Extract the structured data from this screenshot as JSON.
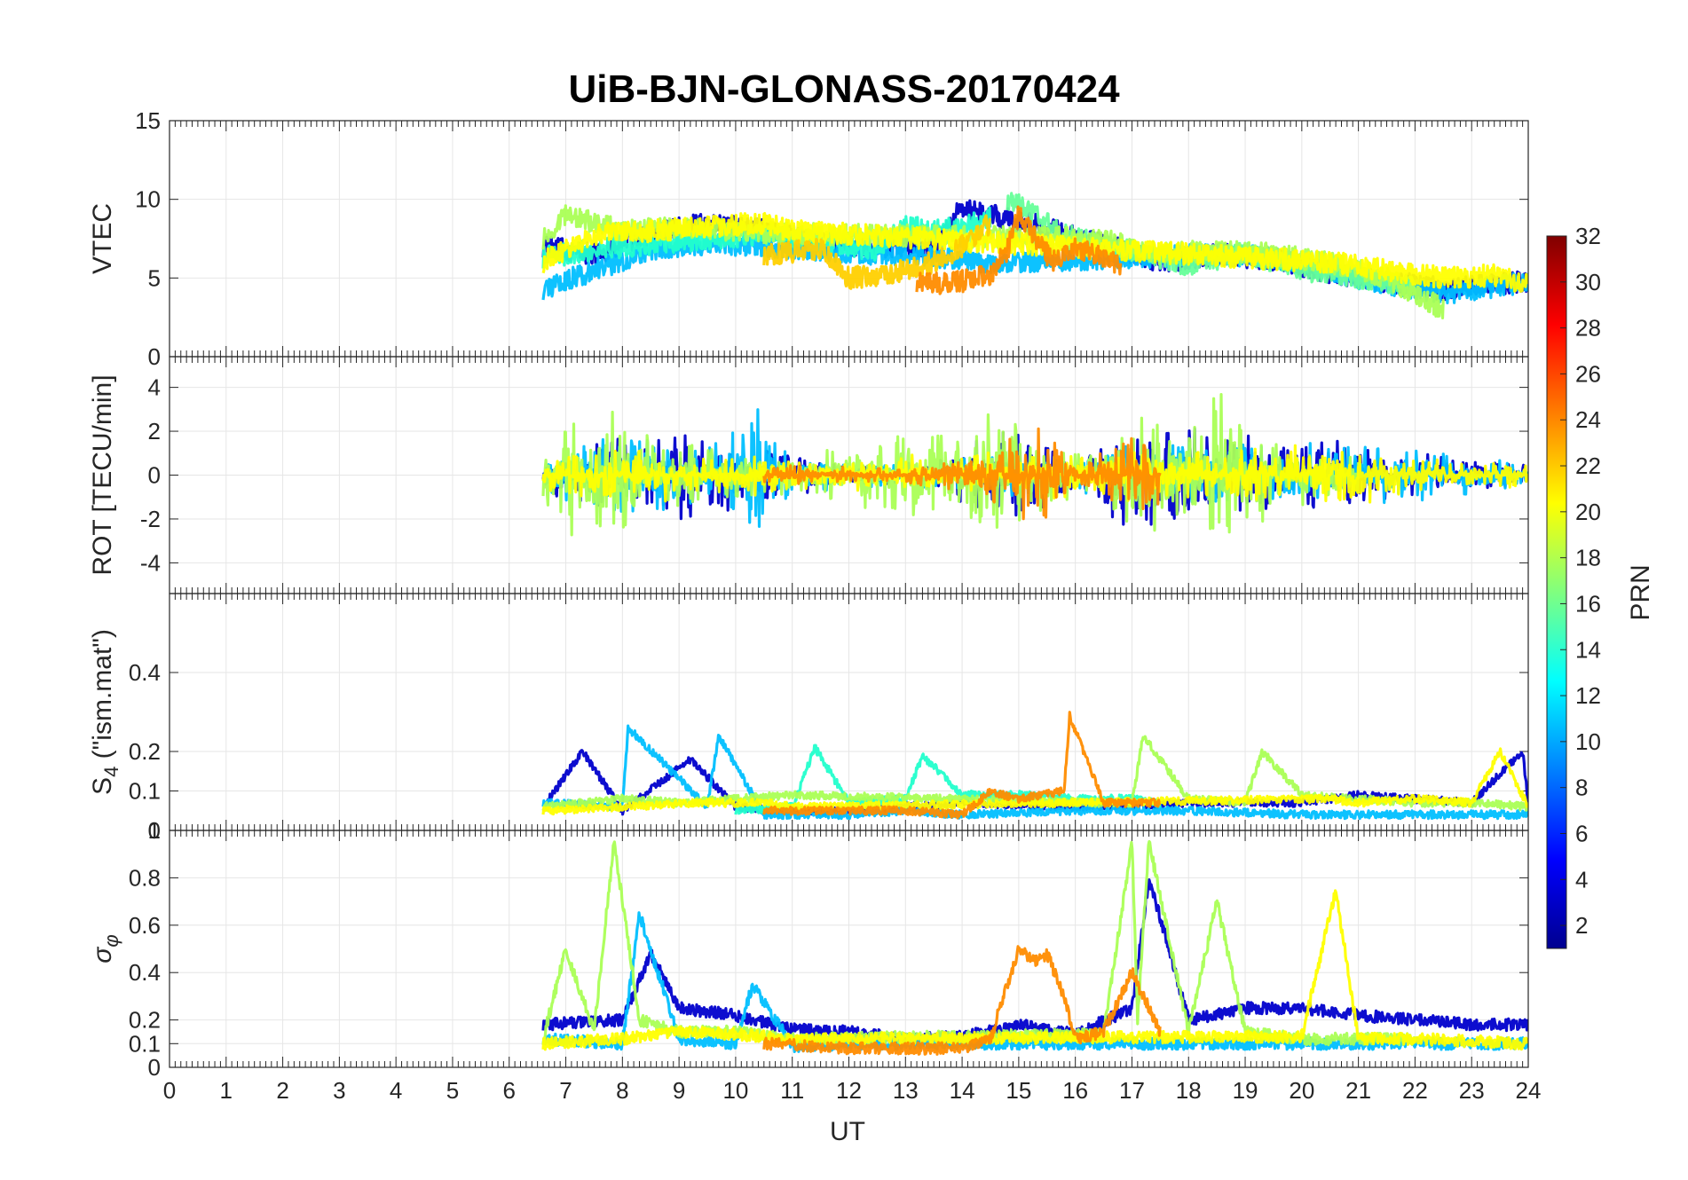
{
  "chart_data": {
    "type": "line",
    "title": "UiB-BJN-GLONASS-20170424",
    "xlabel": "UT",
    "xlim": [
      0,
      24
    ],
    "x_ticks": [
      "0",
      "1",
      "2",
      "3",
      "4",
      "5",
      "6",
      "7",
      "8",
      "9",
      "10",
      "11",
      "12",
      "13",
      "14",
      "15",
      "16",
      "17",
      "18",
      "19",
      "20",
      "21",
      "22",
      "23",
      "24"
    ],
    "grid": true,
    "colorbar": {
      "label": "PRN",
      "range": [
        1,
        32
      ],
      "ticks": [
        "2",
        "4",
        "6",
        "8",
        "10",
        "12",
        "14",
        "16",
        "18",
        "20",
        "22",
        "24",
        "26",
        "28",
        "30",
        "32"
      ],
      "colormap": "jet",
      "placement": "right"
    },
    "panels": [
      {
        "ylabel": "VTEC",
        "ylim": [
          0,
          15
        ],
        "y_ticks": [
          "0",
          "5",
          "10",
          "15"
        ],
        "series": [
          {
            "prn": 2,
            "color": "#0000cc",
            "x": [
              6.6,
              7.5,
              8.5,
              9.5,
              10.5,
              11.5,
              12.5,
              13.5,
              14.0,
              14.5,
              15.5,
              16.5,
              17.5,
              18.5,
              19.5,
              20.5,
              21.5,
              22.5,
              23.5,
              24
            ],
            "y": [
              7.0,
              6.5,
              7.8,
              8.5,
              8.0,
              7.2,
              7.0,
              7.0,
              9.5,
              9.0,
              8.2,
              7.2,
              6.0,
              6.5,
              6.2,
              5.3,
              4.8,
              4.3,
              4.6,
              4.8
            ]
          },
          {
            "prn": 11,
            "color": "#00bfff",
            "x": [
              6.6,
              7.5,
              8.5,
              9.5,
              10.5,
              11.5,
              12.5,
              13.5,
              14.5,
              18.5,
              19.5,
              20.5,
              21.5,
              22.5,
              23.5,
              24
            ],
            "y": [
              4.3,
              5.5,
              6.8,
              7.2,
              7.0,
              6.8,
              6.5,
              6.4,
              6.0,
              6.5,
              6.3,
              5.5,
              4.5,
              4.0,
              4.5,
              4.7
            ]
          },
          {
            "prn": 14,
            "color": "#22ffcc",
            "x": [
              6.6,
              8.0,
              9.5,
              10.5,
              11.5,
              12.5,
              13.0,
              13.5,
              14.0,
              14.5
            ],
            "y": [
              6.3,
              7.0,
              7.5,
              7.8,
              7.2,
              6.8,
              8.3,
              8.0,
              8.2,
              8.8
            ]
          },
          {
            "prn": 16,
            "color": "#66ff99",
            "x": [
              14.8,
              15.3,
              15.8,
              16.5,
              17.0,
              17.5,
              18.0,
              18.5,
              19.0,
              20.0,
              21.0,
              22.0
            ],
            "y": [
              10.0,
              9.0,
              7.8,
              7.0,
              6.8,
              6.3,
              5.8,
              6.2,
              6.6,
              5.5,
              5.0,
              4.5
            ]
          },
          {
            "prn": 18,
            "color": "#aaff55",
            "x": [
              6.6,
              7.0,
              8.0,
              9.0,
              10.0,
              11.0,
              16.5,
              17.5,
              18.5,
              19.5,
              20.5,
              21.5,
              22.5
            ],
            "y": [
              7.5,
              9.0,
              8.0,
              8.2,
              8.0,
              7.8,
              7.5,
              6.5,
              6.8,
              6.5,
              6.0,
              5.0,
              3.0
            ]
          },
          {
            "prn": 20,
            "color": "#ffff00",
            "x": [
              6.6,
              7.5,
              8.5,
              9.5,
              10.5,
              11.0,
              20.5,
              21.5,
              22.5,
              23.5,
              24
            ],
            "y": [
              6.0,
              7.8,
              8.0,
              8.3,
              8.5,
              8.0,
              6.0,
              5.5,
              5.0,
              5.2,
              4.5
            ]
          },
          {
            "prn": 22,
            "color": "#ffd000",
            "x": [
              10.5,
              11.5,
              12.0,
              12.5,
              13.0,
              13.5,
              14.0,
              14.5
            ],
            "y": [
              6.5,
              6.8,
              5.0,
              5.2,
              5.5,
              6.0,
              7.0,
              8.5
            ]
          },
          {
            "prn": 24,
            "color": "#ff8c00",
            "x": [
              13.2,
              13.6,
              14.0,
              14.5,
              14.8,
              15.0,
              15.3,
              15.6,
              16.0,
              16.5,
              16.8
            ],
            "y": [
              4.8,
              4.6,
              4.8,
              5.2,
              6.8,
              9.0,
              7.5,
              6.0,
              7.0,
              6.2,
              5.8
            ]
          }
        ]
      },
      {
        "ylabel": "ROT [TECU/min]",
        "ylim": [
          -5.4,
          5.4
        ],
        "y_ticks": [
          "-4",
          "-2",
          "0",
          "2",
          "4"
        ],
        "series": [
          {
            "prn": 2,
            "color": "#0000cc",
            "x": [
              6.6,
              8.0,
              9.3,
              10.0,
              11.0,
              12.0,
              13.0,
              14.0,
              15.0,
              16.0,
              17.0,
              18.0,
              19.0,
              20.0,
              21.0,
              22.0,
              23.0,
              24
            ],
            "amp": [
              1.0,
              2.0,
              2.5,
              1.5,
              1.0,
              0.5,
              0.6,
              1.5,
              2.5,
              1.0,
              3.0,
              2.5,
              2.0,
              2.0,
              1.6,
              1.3,
              1.0,
              0.6
            ]
          },
          {
            "prn": 11,
            "color": "#00bfff",
            "x": [
              6.6,
              8.0,
              9.0,
              10.3,
              11.0,
              12.0,
              13.0,
              14.0,
              15.0,
              16.0,
              17.0,
              18.0,
              19.0,
              20.0,
              21.0,
              22.0,
              23.0,
              24
            ],
            "amp": [
              1.0,
              2.5,
              1.5,
              3.5,
              1.0,
              0.6,
              0.6,
              0.8,
              1.2,
              0.8,
              1.5,
              2.0,
              1.5,
              1.5,
              1.6,
              1.4,
              1.0,
              0.6
            ]
          },
          {
            "prn": 18,
            "color": "#aaff55",
            "x": [
              6.6,
              7.0,
              7.8,
              8.5,
              9.5,
              10.5,
              11.0,
              14.8,
              15.5,
              16.5,
              17.2,
              18.0,
              18.6,
              19.0,
              20.0,
              21.0
            ],
            "amp": [
              1.5,
              3.0,
              3.5,
              2.0,
              1.5,
              1.2,
              1.0,
              3.0,
              1.5,
              1.0,
              4.0,
              2.5,
              4.5,
              2.5,
              1.5,
              1.0
            ]
          },
          {
            "prn": 20,
            "color": "#ffff00",
            "x": [
              6.6,
              8.0,
              9.5,
              10.5,
              11.0,
              20.5,
              21.0,
              22.0,
              23.0,
              24
            ],
            "amp": [
              0.8,
              1.5,
              1.0,
              1.0,
              0.8,
              1.5,
              1.5,
              1.0,
              0.8,
              0.5
            ]
          },
          {
            "prn": 24,
            "color": "#ff8c00",
            "x": [
              10.5,
              12.0,
              13.0,
              14.0,
              14.8,
              15.3,
              16.0,
              16.5,
              17.0,
              17.5
            ],
            "amp": [
              0.5,
              0.4,
              0.4,
              0.8,
              2.0,
              2.5,
              1.0,
              1.0,
              2.5,
              1.5
            ]
          }
        ]
      },
      {
        "ylabel": "S4 (\"ism.mat\")",
        "ylim": [
          0,
          0.6
        ],
        "y_ticks": [
          "0",
          "0.1",
          "0.2",
          "0.4"
        ],
        "series": [
          {
            "prn": 2,
            "color": "#0000cc",
            "x": [
              6.6,
              7.3,
              8.0,
              9.2,
              10.0,
              11.0,
              12.0,
              13.0,
              14.0,
              16.0,
              18.0,
              20.0,
              21.0,
              22.0,
              23.0,
              23.9,
              24
            ],
            "y": [
              0.06,
              0.2,
              0.05,
              0.18,
              0.06,
              0.05,
              0.05,
              0.06,
              0.07,
              0.06,
              0.07,
              0.07,
              0.09,
              0.08,
              0.07,
              0.2,
              0.07
            ]
          },
          {
            "prn": 11,
            "color": "#00bfff",
            "x": [
              6.6,
              8.0,
              8.1,
              9.5,
              9.7,
              10.5,
              11.0,
              12.0,
              13.0,
              14.0,
              16.0,
              18.0,
              20.0,
              22.0,
              24
            ],
            "y": [
              0.07,
              0.06,
              0.26,
              0.06,
              0.24,
              0.04,
              0.04,
              0.04,
              0.05,
              0.04,
              0.05,
              0.05,
              0.04,
              0.04,
              0.04
            ]
          },
          {
            "prn": 14,
            "color": "#22ffcc",
            "x": [
              10.0,
              11.0,
              11.4,
              12.0,
              13.0,
              13.3,
              14.0,
              15.0,
              16.0,
              17.0,
              17.5
            ],
            "y": [
              0.05,
              0.06,
              0.21,
              0.07,
              0.08,
              0.19,
              0.09,
              0.09,
              0.08,
              0.08,
              0.07
            ]
          },
          {
            "prn": 18,
            "color": "#aaff55",
            "x": [
              6.6,
              8.0,
              9.0,
              10.0,
              11.0,
              16.5,
              17.0,
              17.2,
              18.0,
              19.0,
              19.3,
              20.0,
              21.0,
              22.0,
              23.0,
              24
            ],
            "y": [
              0.06,
              0.08,
              0.07,
              0.08,
              0.09,
              0.07,
              0.07,
              0.24,
              0.08,
              0.07,
              0.2,
              0.09,
              0.08,
              0.07,
              0.07,
              0.06
            ]
          },
          {
            "prn": 20,
            "color": "#ffff00",
            "x": [
              6.6,
              8.0,
              9.5,
              10.5,
              11.0,
              20.5,
              21.0,
              22.0,
              23.0,
              23.5,
              24
            ],
            "y": [
              0.05,
              0.06,
              0.07,
              0.07,
              0.06,
              0.08,
              0.07,
              0.08,
              0.07,
              0.2,
              0.06
            ]
          },
          {
            "prn": 24,
            "color": "#ff8c00",
            "x": [
              10.5,
              12.0,
              13.0,
              14.0,
              14.5,
              15.0,
              15.8,
              15.9,
              16.5,
              17.5
            ],
            "y": [
              0.05,
              0.05,
              0.05,
              0.04,
              0.1,
              0.08,
              0.1,
              0.29,
              0.07,
              0.07
            ]
          }
        ]
      },
      {
        "ylabel": "σφ",
        "ylim": [
          0,
          1
        ],
        "y_ticks": [
          "0",
          "0.1",
          "0.2",
          "0.4",
          "0.6",
          "0.8",
          "1"
        ],
        "series": [
          {
            "prn": 2,
            "color": "#0000cc",
            "x": [
              6.6,
              8.0,
              8.5,
              9.0,
              10.0,
              11.0,
              12.0,
              13.0,
              14.0,
              15.0,
              16.0,
              17.0,
              17.3,
              18.0,
              19.0,
              20.0,
              21.0,
              22.0,
              23.0,
              24
            ],
            "y": [
              0.18,
              0.2,
              0.48,
              0.25,
              0.22,
              0.16,
              0.15,
              0.12,
              0.13,
              0.18,
              0.14,
              0.25,
              0.8,
              0.2,
              0.25,
              0.25,
              0.22,
              0.2,
              0.18,
              0.18
            ]
          },
          {
            "prn": 11,
            "color": "#00bfff",
            "x": [
              6.6,
              8.0,
              8.3,
              9.0,
              10.0,
              10.3,
              11.0,
              12.0,
              14.0,
              16.0,
              18.0,
              20.0,
              22.0,
              24
            ],
            "y": [
              0.12,
              0.1,
              0.65,
              0.12,
              0.1,
              0.35,
              0.09,
              0.1,
              0.1,
              0.1,
              0.1,
              0.1,
              0.1,
              0.1
            ]
          },
          {
            "prn": 18,
            "color": "#aaff55",
            "x": [
              6.6,
              7.0,
              7.5,
              7.85,
              8.3,
              9.0,
              10.0,
              11.0,
              16.5,
              17.0,
              17.1,
              17.3,
              18.0,
              18.5,
              19.0,
              20.0,
              21.0,
              22.0
            ],
            "y": [
              0.12,
              0.5,
              0.15,
              0.95,
              0.2,
              0.15,
              0.15,
              0.12,
              0.14,
              0.95,
              0.2,
              0.95,
              0.15,
              0.7,
              0.15,
              0.12,
              0.12,
              0.12
            ]
          },
          {
            "prn": 20,
            "color": "#ffff00",
            "x": [
              6.6,
              8.0,
              9.0,
              10.0,
              11.0,
              20.0,
              20.6,
              21.0,
              22.0,
              23.0,
              24
            ],
            "y": [
              0.1,
              0.12,
              0.15,
              0.14,
              0.12,
              0.13,
              0.75,
              0.12,
              0.12,
              0.11,
              0.1
            ]
          },
          {
            "prn": 24,
            "color": "#ff8c00",
            "x": [
              10.5,
              12.0,
              13.0,
              14.0,
              14.5,
              15.0,
              15.3,
              15.5,
              15.8,
              16.0,
              16.5,
              17.0,
              17.5
            ],
            "y": [
              0.1,
              0.08,
              0.08,
              0.08,
              0.12,
              0.5,
              0.45,
              0.48,
              0.3,
              0.12,
              0.15,
              0.4,
              0.15
            ]
          }
        ]
      }
    ]
  }
}
